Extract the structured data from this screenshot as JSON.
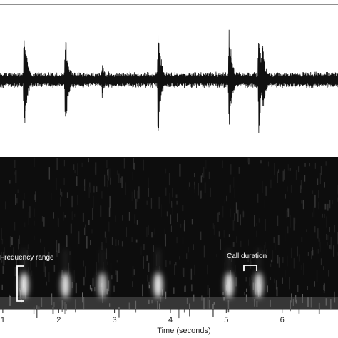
{
  "chart_data": [
    {
      "type": "line",
      "panel": "waveform",
      "description_shown": "oscillogram (amplitude vs time)",
      "xlim": [
        0.95,
        7.0
      ],
      "ylim": [
        -1,
        1
      ],
      "baseline_noise_amplitude": 0.12,
      "calls": [
        {
          "time": 1.38,
          "peak": 0.82
        },
        {
          "time": 2.12,
          "peak": 0.72
        },
        {
          "time": 2.78,
          "peak": 0.26
        },
        {
          "time": 3.78,
          "peak": 0.85
        },
        {
          "time": 5.05,
          "peak": 0.8
        },
        {
          "time": 5.58,
          "peak": 0.78
        },
        {
          "time": 5.65,
          "peak": 0.52
        }
      ]
    },
    {
      "type": "heatmap",
      "panel": "spectrogram",
      "xlabel": "Time (seconds)",
      "xlim": [
        0.95,
        7.0
      ],
      "x_ticks": [
        1,
        2,
        3,
        4,
        5,
        6
      ],
      "bright_patches": [
        {
          "time": 1.38,
          "intensity": 0.95
        },
        {
          "time": 2.12,
          "intensity": 0.85
        },
        {
          "time": 2.78,
          "intensity": 0.55
        },
        {
          "time": 3.78,
          "intensity": 0.95
        },
        {
          "time": 5.05,
          "intensity": 0.9
        },
        {
          "time": 5.58,
          "intensity": 0.8
        }
      ],
      "annotations": [
        {
          "text": "Frequency range"
        },
        {
          "text": "Call duration"
        }
      ]
    }
  ],
  "colors": {
    "waveform_background": "#ffffff",
    "waveform_line": "#111111",
    "spectrogram_background": "#0d0d0d",
    "annotation_text": "#ffffff",
    "bracket": "#ffffff"
  }
}
